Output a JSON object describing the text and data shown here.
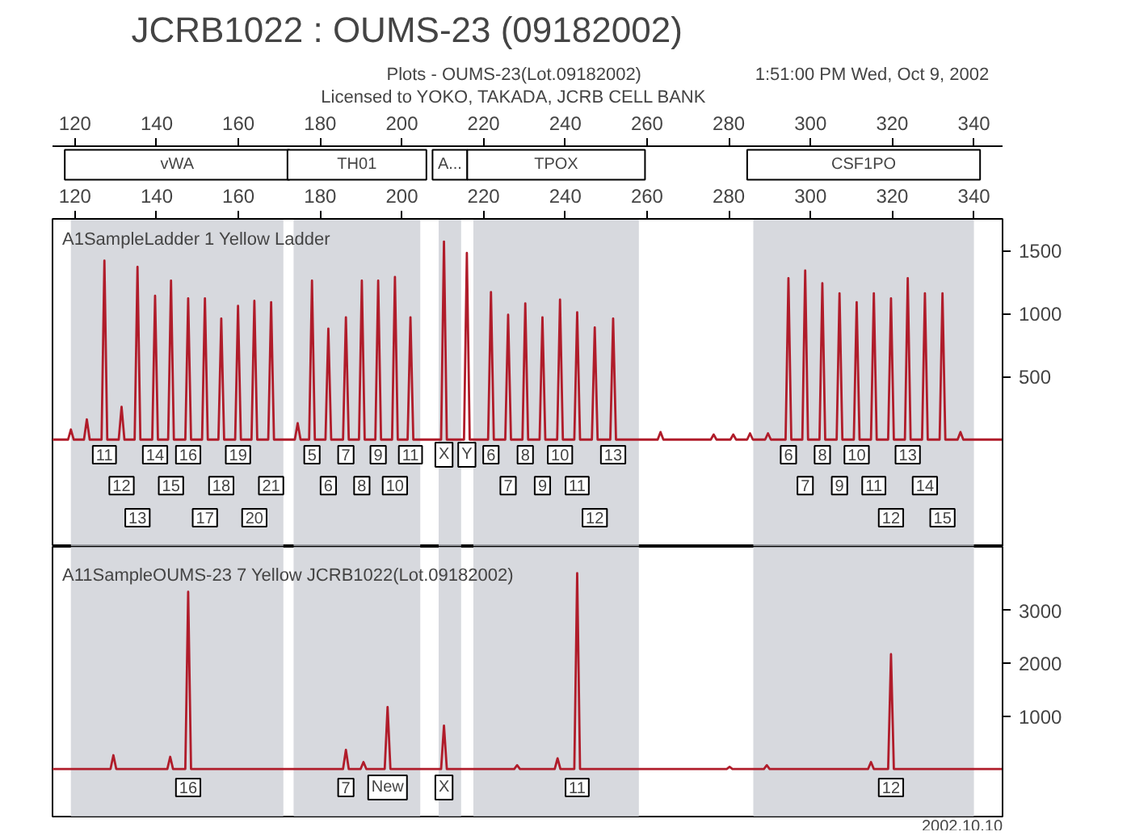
{
  "chart_data": [
    {
      "type": "line",
      "title": "JCRB1022 : OUMS-23 (09182002)",
      "subtitle": "Plots - OUMS-23(Lot.09182002)",
      "annotations": [
        "Licensed to YOKO, TAKADA, JCRB CELL BANK",
        "1:51:00 PM Wed, Oct 9, 2002",
        "A1SampleLadder     1 Yellow  Ladder",
        {
          "text": "11",
          "x": 127.2,
          "y": -120
        },
        {
          "text": "12",
          "x": 131.4,
          "y": -365
        },
        {
          "text": "13",
          "x": 135.3,
          "y": -620
        },
        {
          "text": "14",
          "x": 139.6,
          "y": -120
        },
        {
          "text": "15",
          "x": 143.5,
          "y": -365
        },
        {
          "text": "16",
          "x": 147.7,
          "y": -120
        },
        {
          "text": "17",
          "x": 151.8,
          "y": -620
        },
        {
          "text": "18",
          "x": 155.8,
          "y": -365
        },
        {
          "text": "19",
          "x": 159.9,
          "y": -120
        },
        {
          "text": "20",
          "x": 163.9,
          "y": -620
        },
        {
          "text": "21",
          "x": 168,
          "y": -365
        },
        {
          "text": "5",
          "x": 178,
          "y": -120
        },
        {
          "text": "6",
          "x": 182,
          "y": -365
        },
        {
          "text": "7",
          "x": 186.3,
          "y": -120
        },
        {
          "text": "8",
          "x": 190.2,
          "y": -365
        },
        {
          "text": "9",
          "x": 194.2,
          "y": -120
        },
        {
          "text": "10",
          "x": 198.3,
          "y": -365
        },
        {
          "text": "11",
          "x": 202.1,
          "y": -120
        },
        {
          "text": "X",
          "x": 210.3,
          "y": -120
        },
        {
          "text": "Y",
          "x": 215.9,
          "y": -120
        },
        {
          "text": "6",
          "x": 221.8,
          "y": -120
        },
        {
          "text": "7",
          "x": 226,
          "y": -365
        },
        {
          "text": "8",
          "x": 230.2,
          "y": -120
        },
        {
          "text": "9",
          "x": 234.4,
          "y": -365
        },
        {
          "text": "10",
          "x": 238.7,
          "y": -120
        },
        {
          "text": "11",
          "x": 242.9,
          "y": -365
        },
        {
          "text": "12",
          "x": 247.2,
          "y": -620
        },
        {
          "text": "13",
          "x": 251.7,
          "y": -120
        },
        {
          "text": "6",
          "x": 294.6,
          "y": -120
        },
        {
          "text": "7",
          "x": 298.7,
          "y": -365
        },
        {
          "text": "8",
          "x": 302.9,
          "y": -120
        },
        {
          "text": "9",
          "x": 307.1,
          "y": -365
        },
        {
          "text": "10",
          "x": 311.3,
          "y": -120
        },
        {
          "text": "11",
          "x": 315.5,
          "y": -365
        },
        {
          "text": "12",
          "x": 319.7,
          "y": -620
        },
        {
          "text": "13",
          "x": 323.8,
          "y": -120
        },
        {
          "text": "14",
          "x": 328,
          "y": -365
        },
        {
          "text": "15",
          "x": 332.3,
          "y": -620
        }
      ],
      "x2lim": [
        114.5,
        347
      ],
      "x2ticks": [
        120,
        140,
        160,
        180,
        200,
        220,
        240,
        260,
        280,
        300,
        320,
        340
      ],
      "xlim": [
        114.5,
        347
      ],
      "xticks": [
        120,
        140,
        160,
        180,
        200,
        220,
        240,
        260,
        280,
        300,
        320,
        340
      ],
      "ylim": [
        -850,
        1750
      ],
      "yticks": [
        500,
        1000,
        1500
      ],
      "bands": [
        {
          "axis": "x",
          "from": 119,
          "to": 171,
          "label": "vWA",
          "color": "#c9ccd3"
        },
        {
          "axis": "x",
          "from": 173.5,
          "to": 204.5,
          "label": "TH01",
          "color": "#c9ccd3"
        },
        {
          "axis": "x",
          "from": 209,
          "to": 214.5,
          "label": "A...",
          "color": "#c9ccd3"
        },
        {
          "axis": "x",
          "from": 217.5,
          "to": 258,
          "label": "TPOX",
          "color": "#c9ccd3"
        },
        {
          "axis": "x",
          "from": 286,
          "to": 340,
          "label": "CSF1PO",
          "color": "#c9ccd3"
        }
      ],
      "series": [
        {
          "color": "#b01c2a",
          "x": [
            114.5,
            118.3,
            119,
            119.7,
            122.2,
            122.9,
            123.6,
            126.5,
            127.2,
            127.9,
            130.7,
            131.4,
            132.1,
            134.6,
            135.3,
            136,
            138.9,
            139.6,
            140.3,
            142.8,
            143.5,
            144.2,
            147,
            147.7,
            148.4,
            151.1,
            151.8,
            152.5,
            155.1,
            155.8,
            156.5,
            159.2,
            159.9,
            160.6,
            163.2,
            163.9,
            164.6,
            167.3,
            168,
            168.7,
            173.8,
            174.5,
            175.2,
            177.3,
            178,
            178.7,
            181.3,
            182,
            182.7,
            185.6,
            186.3,
            187,
            189.5,
            190.2,
            190.9,
            193.5,
            194.2,
            194.9,
            197.6,
            198.3,
            199,
            201.4,
            202.1,
            202.8,
            209.6,
            210.3,
            211,
            215.2,
            215.9,
            216.6,
            221.1,
            221.8,
            222.5,
            225.3,
            226,
            226.7,
            229.5,
            230.2,
            230.9,
            233.7,
            234.4,
            235.1,
            238,
            238.7,
            239.4,
            242.2,
            242.9,
            243.6,
            246.5,
            247.2,
            247.9,
            251,
            251.7,
            252.4,
            262.6,
            263.3,
            264,
            275.6,
            276.3,
            277,
            280.4,
            281.1,
            281.8,
            284.5,
            285.2,
            285.9,
            288.9,
            289.6,
            290.3,
            293.9,
            294.6,
            295.3,
            298,
            298.7,
            299.4,
            302.2,
            302.9,
            303.6,
            306.4,
            307.1,
            307.8,
            310.6,
            311.3,
            312,
            314.8,
            315.5,
            316.2,
            319,
            319.7,
            320.4,
            323.1,
            323.8,
            324.5,
            327.3,
            328,
            328.7,
            331.6,
            332.3,
            333,
            336,
            336.7,
            337.4,
            347
          ],
          "values": [
            0,
            0,
            80,
            0,
            0,
            160,
            0,
            0,
            1420,
            0,
            0,
            260,
            0,
            0,
            1370,
            0,
            0,
            1140,
            0,
            0,
            1260,
            0,
            0,
            1120,
            0,
            0,
            1120,
            0,
            0,
            960,
            0,
            0,
            1060,
            0,
            0,
            1100,
            0,
            0,
            1090,
            0,
            0,
            130,
            0,
            0,
            1260,
            0,
            0,
            880,
            0,
            0,
            970,
            0,
            0,
            1260,
            0,
            0,
            1260,
            0,
            0,
            1290,
            0,
            0,
            970,
            0,
            0,
            1570,
            0,
            0,
            1480,
            0,
            0,
            1170,
            0,
            0,
            990,
            0,
            0,
            1080,
            0,
            0,
            970,
            0,
            0,
            1110,
            0,
            0,
            1010,
            0,
            0,
            890,
            0,
            0,
            960,
            0,
            0,
            60,
            0,
            0,
            40,
            0,
            0,
            40,
            0,
            0,
            50,
            0,
            0,
            50,
            0,
            0,
            1280,
            0,
            0,
            1340,
            0,
            0,
            1240,
            0,
            0,
            1160,
            0,
            0,
            1090,
            0,
            0,
            1160,
            0,
            0,
            1120,
            0,
            0,
            1280,
            0,
            0,
            1160,
            0,
            0,
            1160,
            0,
            0,
            60,
            0,
            0
          ]
        }
      ]
    },
    {
      "type": "line",
      "tick_labels": "y",
      "annotations": [
        "A11SampleOUMS-23     7  Yellow   JCRB1022(Lot.09182002)",
        "2002.10.10",
        {
          "text": "16",
          "x": 147.7,
          "y": -350
        },
        {
          "text": "7",
          "x": 186.3,
          "y": -350
        },
        {
          "text": "New",
          "x": 196.5,
          "y": -350
        },
        {
          "text": "X",
          "x": 210.3,
          "y": -350
        },
        {
          "text": "11",
          "x": 242.9,
          "y": -350
        },
        {
          "text": "12",
          "x": 319.7,
          "y": -350
        }
      ],
      "xlim": [
        114.5,
        347
      ],
      "ylim": [
        -900,
        4200
      ],
      "yticks": [
        1000,
        2000,
        3000
      ],
      "bands": [
        {
          "axis": "x",
          "from": 119,
          "to": 171,
          "color": "#c9ccd3"
        },
        {
          "axis": "x",
          "from": 173.5,
          "to": 204.5,
          "color": "#c9ccd3"
        },
        {
          "axis": "x",
          "from": 209,
          "to": 214.5,
          "color": "#c9ccd3"
        },
        {
          "axis": "x",
          "from": 217.5,
          "to": 258,
          "color": "#c9ccd3"
        },
        {
          "axis": "x",
          "from": 286,
          "to": 340,
          "color": "#c9ccd3"
        }
      ],
      "series": [
        {
          "color": "#b01c2a",
          "x": [
            114.5,
            128.7,
            129.4,
            130.1,
            142.6,
            143.3,
            144,
            147,
            147.7,
            148.4,
            185.6,
            186.3,
            187,
            189.9,
            190.6,
            191.3,
            195.8,
            196.5,
            197.2,
            209.6,
            210.3,
            211,
            227.5,
            228.2,
            228.9,
            237.4,
            238.1,
            238.8,
            242.2,
            242.9,
            243.6,
            279.5,
            280.2,
            280.9,
            288.6,
            289.3,
            290,
            314.1,
            314.8,
            315.5,
            319,
            319.7,
            320.4,
            347
          ],
          "values": [
            0,
            0,
            260,
            0,
            0,
            230,
            0,
            0,
            3350,
            0,
            0,
            360,
            0,
            0,
            130,
            0,
            0,
            1170,
            0,
            0,
            820,
            0,
            0,
            70,
            0,
            0,
            200,
            0,
            0,
            3700,
            0,
            0,
            40,
            0,
            0,
            70,
            0,
            0,
            130,
            0,
            0,
            2170,
            0,
            0
          ]
        }
      ]
    }
  ]
}
